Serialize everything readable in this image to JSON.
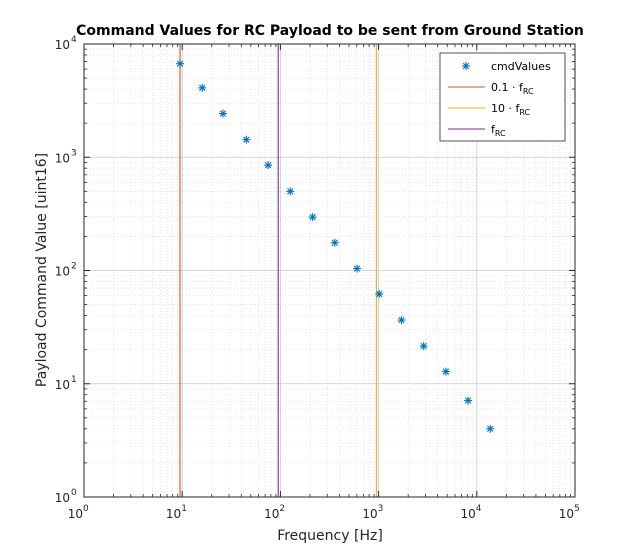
{
  "chart_data": {
    "type": "scatter",
    "title": "Command Values for RC Payload to be sent from Ground Station",
    "xlabel": "Frequency [Hz]",
    "ylabel": "Payload Command Value [uint16]",
    "xscale": "log",
    "yscale": "log",
    "xlim": [
      1,
      100000
    ],
    "ylim": [
      1,
      10000
    ],
    "grid": true,
    "minor_grid": true,
    "legend_position": "top-right",
    "x_ticks": [
      {
        "base": "10",
        "exp": "0",
        "value": 1
      },
      {
        "base": "10",
        "exp": "1",
        "value": 10
      },
      {
        "base": "10",
        "exp": "2",
        "value": 100
      },
      {
        "base": "10",
        "exp": "3",
        "value": 1000
      },
      {
        "base": "10",
        "exp": "4",
        "value": 10000
      },
      {
        "base": "10",
        "exp": "5",
        "value": 100000
      }
    ],
    "y_ticks": [
      {
        "base": "10",
        "exp": "0",
        "value": 1
      },
      {
        "base": "10",
        "exp": "1",
        "value": 10
      },
      {
        "base": "10",
        "exp": "2",
        "value": 100
      },
      {
        "base": "10",
        "exp": "3",
        "value": 1000
      },
      {
        "base": "10",
        "exp": "4",
        "value": 10000
      }
    ],
    "series": [
      {
        "name": "cmdValues",
        "marker": "asterisk",
        "color": "#0072BD",
        "x": [
          9.5,
          16,
          26,
          45,
          75,
          126,
          213,
          358,
          603,
          1015,
          1710,
          2880,
          4850,
          8160,
          13700
        ],
        "y": [
          6700,
          4100,
          2430,
          1430,
          850,
          500,
          296,
          176,
          104,
          62,
          36.5,
          21.5,
          12.8,
          7.1,
          4.0
        ]
      }
    ],
    "vlines": [
      {
        "legend_main": "0.1 · f",
        "legend_sub": "RC",
        "x": 9.5,
        "color": "#D95319"
      },
      {
        "legend_main": "10 · f",
        "legend_sub": "RC",
        "x": 950,
        "color": "#EDB120"
      },
      {
        "legend_main": "f",
        "legend_sub": "RC",
        "x": 95,
        "color": "#7E2F8E"
      }
    ]
  }
}
